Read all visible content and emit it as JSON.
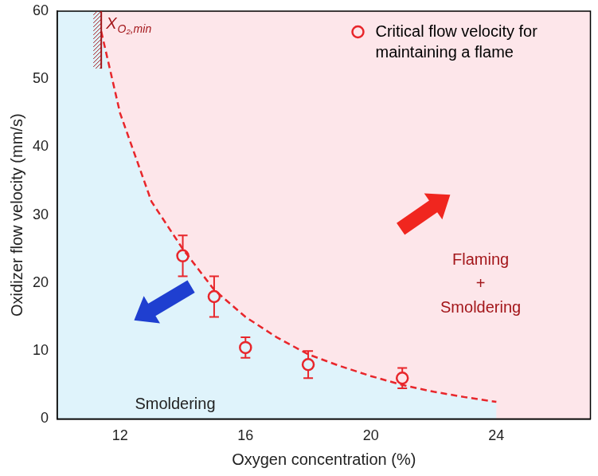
{
  "chart_data": {
    "type": "scatter",
    "x_label": "Oxygen concentration (%)",
    "y_label": "Oxidizer flow velocity (mm/s)",
    "xlim": [
      10,
      27
    ],
    "xticks": [
      12,
      16,
      20,
      24
    ],
    "ylim": [
      0,
      60
    ],
    "yticks": [
      0,
      10,
      20,
      30,
      40,
      50,
      60
    ],
    "grid": false,
    "legend": "upper right",
    "series": [
      {
        "name": "Critical flow velocity for maintaining a flame",
        "type": "scatter",
        "color": "#e8262b",
        "marker": "circle_open",
        "x": [
          14,
          15,
          16,
          18,
          21
        ],
        "values": [
          24,
          18,
          10.5,
          8,
          6
        ],
        "errors": [
          3,
          3,
          1.5,
          2,
          1.5
        ]
      },
      {
        "type": "line",
        "color": "#e8262b",
        "line_style": "dashed",
        "x": [
          11.4,
          12,
          13,
          14,
          15,
          16,
          17,
          18,
          19,
          20,
          21,
          22,
          23,
          24
        ],
        "values": [
          57,
          45,
          32,
          25,
          19,
          15,
          12,
          9.5,
          7.8,
          6.3,
          5,
          4,
          3.2,
          2.5
        ]
      }
    ],
    "annotations": [
      {
        "text": "Flaming + Smoldering",
        "color": "#a3161a"
      },
      {
        "text": "Smoldering",
        "color": "#222222"
      }
    ],
    "limit_line": {
      "x": 11.4,
      "label": "X",
      "subscript": "O₂,min",
      "color": "#a3161a"
    }
  }
}
